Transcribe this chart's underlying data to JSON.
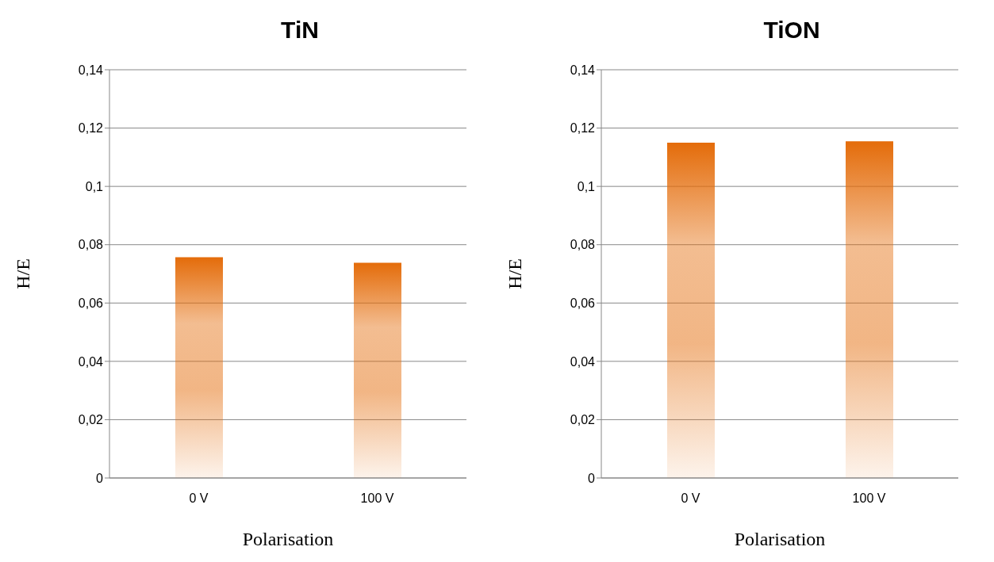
{
  "chart_data": [
    {
      "type": "bar",
      "title": "TiN",
      "xlabel": "Polarisation",
      "ylabel": "H/E",
      "categories": [
        "0 V",
        "100 V"
      ],
      "values": [
        0.0757,
        0.0738
      ],
      "color": "#e46c0a",
      "ylim": [
        0,
        0.14
      ],
      "yticks": [
        {
          "value": 0,
          "label": "0"
        },
        {
          "value": 0.02,
          "label": "0,02"
        },
        {
          "value": 0.04,
          "label": "0,04"
        },
        {
          "value": 0.06,
          "label": "0,06"
        },
        {
          "value": 0.08,
          "label": "0,08"
        },
        {
          "value": 0.1,
          "label": "0,1"
        },
        {
          "value": 0.12,
          "label": "0,12"
        },
        {
          "value": 0.14,
          "label": "0,14"
        }
      ],
      "grid": "y",
      "legend": false
    },
    {
      "type": "bar",
      "title": "TiON",
      "xlabel": "Polarisation",
      "ylabel": "H/E",
      "categories": [
        "0 V",
        "100 V"
      ],
      "values": [
        0.115,
        0.1155
      ],
      "color": "#e46c0a",
      "ylim": [
        0,
        0.14
      ],
      "yticks": [
        {
          "value": 0,
          "label": "0"
        },
        {
          "value": 0.02,
          "label": "0,02"
        },
        {
          "value": 0.04,
          "label": "0,04"
        },
        {
          "value": 0.06,
          "label": "0,06"
        },
        {
          "value": 0.08,
          "label": "0,08"
        },
        {
          "value": 0.1,
          "label": "0,1"
        },
        {
          "value": 0.12,
          "label": "0,12"
        },
        {
          "value": 0.14,
          "label": "0,14"
        }
      ],
      "grid": "y",
      "legend": false
    }
  ]
}
